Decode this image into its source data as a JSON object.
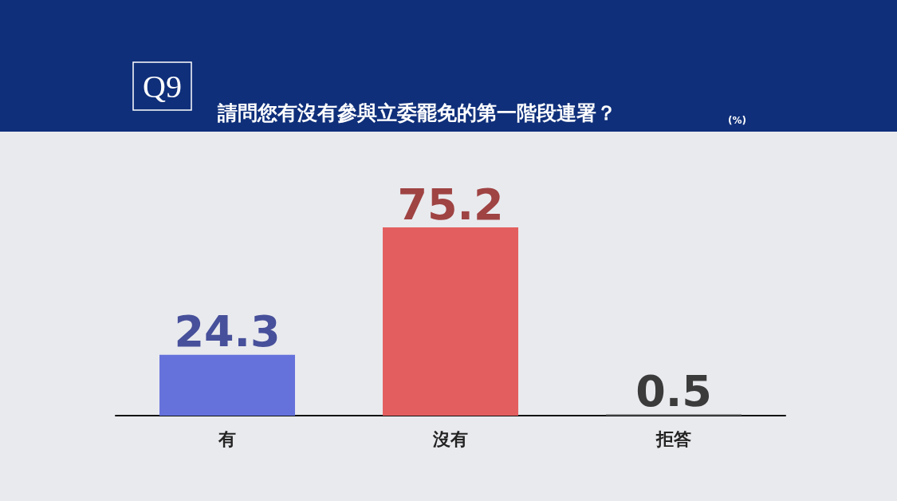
{
  "chart_data": {
    "type": "bar",
    "title": "Q9",
    "subtitle": "請問您有沒有參與立委罷免的第一階段連署？",
    "annotations": [
      "(%)"
    ],
    "categories": [
      "有",
      "沒有",
      "拒答"
    ],
    "values": [
      24.3,
      75.2,
      0.5
    ],
    "colors": [
      "#6672dc",
      "#e35f5f",
      "#555555"
    ],
    "data_labels": true
  }
}
